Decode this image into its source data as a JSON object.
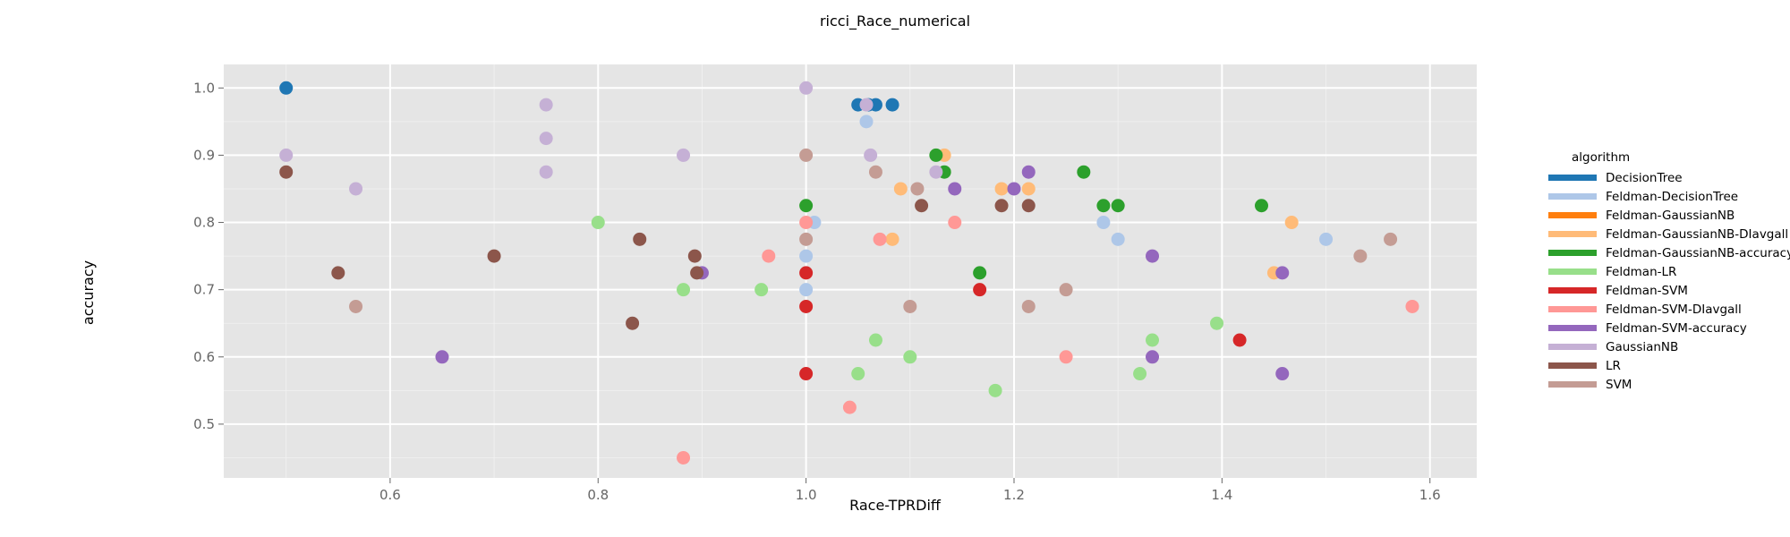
{
  "chart_data": {
    "type": "scatter",
    "title": "ricci_Race_numerical",
    "xlabel": "Race-TPRDiff",
    "ylabel": "accuracy",
    "xlim": [
      0.44,
      1.645
    ],
    "ylim": [
      0.42,
      1.035
    ],
    "xticks": [
      0.6,
      0.8,
      1.0,
      1.2,
      1.4,
      1.6
    ],
    "xtick_labels": [
      "0.6",
      "0.8",
      "1.0",
      "1.2",
      "1.4",
      "1.6"
    ],
    "yticks": [
      0.5,
      0.6,
      0.7,
      0.8,
      0.9,
      1.0
    ],
    "ytick_labels": [
      "0.5",
      "0.6",
      "0.7",
      "0.8",
      "0.9",
      "1.0"
    ],
    "grid": true,
    "legend": {
      "title": "algorithm",
      "position": "right"
    },
    "series": [
      {
        "name": "DecisionTree",
        "color": "#1f77b4",
        "points": [
          [
            0.5,
            1.0
          ],
          [
            1.05,
            0.975
          ],
          [
            1.06,
            0.975
          ],
          [
            1.067,
            0.975
          ],
          [
            1.083,
            0.975
          ]
        ]
      },
      {
        "name": "Feldman-DecisionTree",
        "color": "#aec7e8",
        "points": [
          [
            1.0,
            0.75
          ],
          [
            1.0,
            0.7
          ],
          [
            1.008,
            0.8
          ],
          [
            1.058,
            0.95
          ],
          [
            1.286,
            0.8
          ],
          [
            1.3,
            0.775
          ],
          [
            1.5,
            0.775
          ]
        ]
      },
      {
        "name": "Feldman-GaussianNB",
        "color": "#ff7f0e",
        "points": []
      },
      {
        "name": "Feldman-GaussianNB-DIavgall",
        "color": "#ffbb78",
        "points": [
          [
            1.083,
            0.775
          ],
          [
            1.091,
            0.85
          ],
          [
            1.133,
            0.9
          ],
          [
            1.188,
            0.85
          ],
          [
            1.214,
            0.85
          ],
          [
            1.45,
            0.725
          ],
          [
            1.467,
            0.8
          ]
        ]
      },
      {
        "name": "Feldman-GaussianNB-accuracy",
        "color": "#2ca02c",
        "points": [
          [
            1.0,
            0.825
          ],
          [
            1.125,
            0.9
          ],
          [
            1.133,
            0.875
          ],
          [
            1.167,
            0.725
          ],
          [
            1.267,
            0.875
          ],
          [
            1.286,
            0.825
          ],
          [
            1.3,
            0.825
          ],
          [
            1.438,
            0.825
          ]
        ]
      },
      {
        "name": "Feldman-LR",
        "color": "#98df8a",
        "points": [
          [
            0.8,
            0.8
          ],
          [
            0.882,
            0.7
          ],
          [
            0.957,
            0.7
          ],
          [
            1.05,
            0.575
          ],
          [
            1.067,
            0.625
          ],
          [
            1.1,
            0.6
          ],
          [
            1.182,
            0.55
          ],
          [
            1.321,
            0.575
          ],
          [
            1.333,
            0.625
          ],
          [
            1.395,
            0.65
          ]
        ]
      },
      {
        "name": "Feldman-SVM",
        "color": "#d62728",
        "points": [
          [
            1.0,
            0.725
          ],
          [
            1.0,
            0.675
          ],
          [
            1.0,
            0.575
          ],
          [
            1.167,
            0.7
          ],
          [
            1.417,
            0.625
          ]
        ]
      },
      {
        "name": "Feldman-SVM-DIavgall",
        "color": "#ff9896",
        "points": [
          [
            0.882,
            0.45
          ],
          [
            0.964,
            0.75
          ],
          [
            1.0,
            0.8
          ],
          [
            1.042,
            0.525
          ],
          [
            1.071,
            0.775
          ],
          [
            1.143,
            0.8
          ],
          [
            1.25,
            0.6
          ],
          [
            1.583,
            0.675
          ]
        ]
      },
      {
        "name": "Feldman-SVM-accuracy",
        "color": "#9467bd",
        "points": [
          [
            0.65,
            0.6
          ],
          [
            0.9,
            0.725
          ],
          [
            1.143,
            0.85
          ],
          [
            1.2,
            0.85
          ],
          [
            1.214,
            0.875
          ],
          [
            1.333,
            0.75
          ],
          [
            1.333,
            0.6
          ],
          [
            1.458,
            0.725
          ],
          [
            1.458,
            0.575
          ]
        ]
      },
      {
        "name": "GaussianNB",
        "color": "#c5b0d5",
        "points": [
          [
            0.5,
            0.9
          ],
          [
            0.567,
            0.85
          ],
          [
            0.75,
            0.975
          ],
          [
            0.75,
            0.925
          ],
          [
            0.75,
            0.875
          ],
          [
            0.882,
            0.9
          ],
          [
            1.0,
            1.0
          ],
          [
            1.058,
            0.975
          ],
          [
            1.062,
            0.9
          ],
          [
            1.125,
            0.875
          ]
        ]
      },
      {
        "name": "LR",
        "color": "#8c564b",
        "points": [
          [
            0.5,
            0.875
          ],
          [
            0.55,
            0.725
          ],
          [
            0.7,
            0.75
          ],
          [
            0.833,
            0.65
          ],
          [
            0.84,
            0.775
          ],
          [
            0.893,
            0.75
          ],
          [
            0.895,
            0.725
          ],
          [
            1.111,
            0.825
          ],
          [
            1.188,
            0.825
          ],
          [
            1.214,
            0.825
          ]
        ]
      },
      {
        "name": "SVM",
        "color": "#c49c94",
        "points": [
          [
            0.567,
            0.675
          ],
          [
            1.0,
            0.9
          ],
          [
            1.0,
            0.775
          ],
          [
            1.067,
            0.875
          ],
          [
            1.1,
            0.675
          ],
          [
            1.107,
            0.85
          ],
          [
            1.214,
            0.675
          ],
          [
            1.25,
            0.7
          ],
          [
            1.533,
            0.75
          ],
          [
            1.562,
            0.775
          ]
        ]
      }
    ]
  }
}
